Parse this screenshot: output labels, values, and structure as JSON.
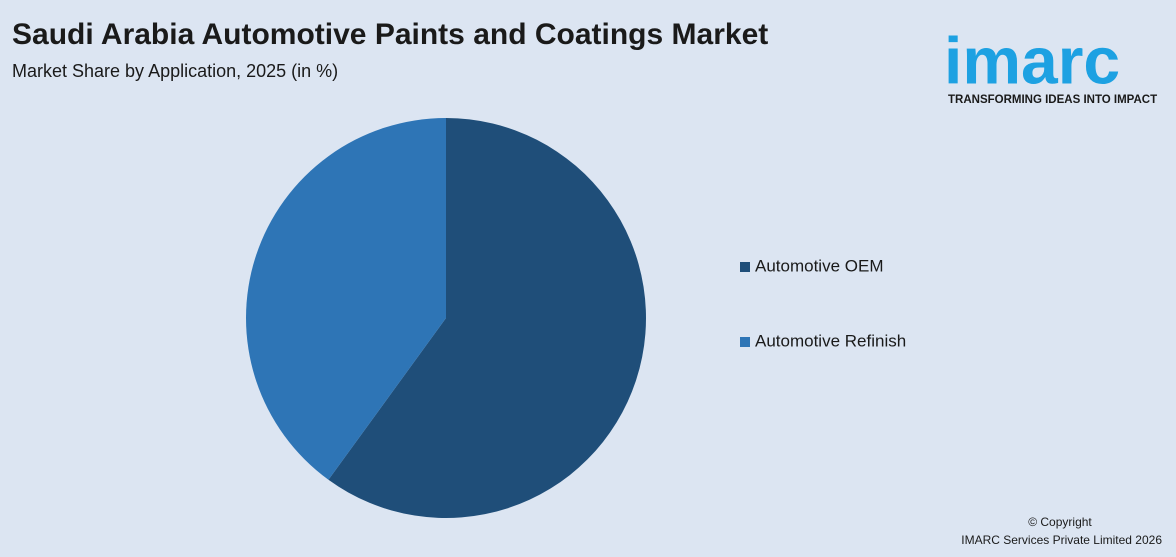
{
  "chart_data": {
    "type": "pie",
    "title": "Saudi Arabia Automotive Paints and Coatings Market",
    "subtitle": "Market Share by Application, 2025 (in %)",
    "categories": [
      "Automotive OEM",
      "Automotive Refinish"
    ],
    "values": [
      60,
      40
    ],
    "colors": [
      "#1f4e79",
      "#2e75b6"
    ],
    "legend": "right"
  },
  "logo": {
    "name": "imarc",
    "tagline": "TRANSFORMING IDEAS INTO IMPACT"
  },
  "footer": {
    "copyright": "© Copyright",
    "company": "IMARC Services Private Limited 2026"
  }
}
